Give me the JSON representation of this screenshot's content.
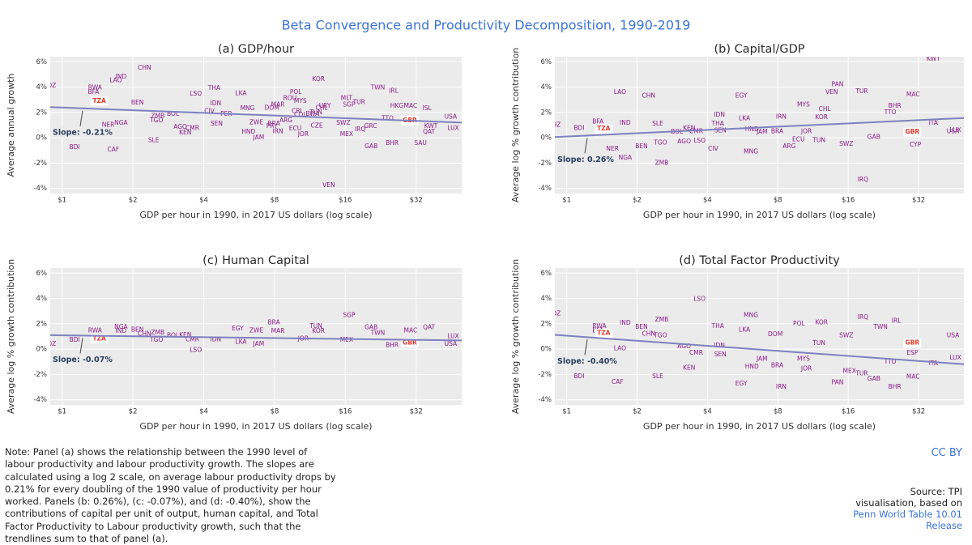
{
  "title": "Beta Convergence and Productivity Decomposition, 1990-2019",
  "chart_data": [
    {
      "type": "scatter",
      "title": "(a) GDP/hour",
      "xlabel": "GDP per hour in 1990, in 2017 US dollars (log scale)",
      "ylabel": "Average annual growth",
      "labels": [
        "MOZ",
        "BDI",
        "RWA",
        "BFA",
        "TZA",
        "LAO",
        "IND",
        "CHN",
        "NER",
        "NGA",
        "CAF",
        "BEN",
        "ZMB",
        "TGO",
        "BOL",
        "SLE",
        "AGO",
        "CMR",
        "KEN",
        "THA",
        "LSO",
        "IDN",
        "CIV",
        "SEN",
        "MNG",
        "LKA",
        "PER",
        "HND",
        "JAM",
        "ZWE",
        "PRY",
        "BRA",
        "MAR",
        "DOM",
        "IRN",
        "ECU",
        "JOR",
        "POL",
        "ROU",
        "CRI",
        "COL",
        "ARG",
        "KOR",
        "TUN",
        "BWA",
        "URY",
        "CHL",
        "MYS",
        "CZE",
        "MLT",
        "SGP",
        "TUR",
        "SWZ",
        "GRC",
        "MEX",
        "BHR",
        "GAB",
        "TWN",
        "IRL",
        "HKG",
        "MAC",
        "ISL",
        "TTO",
        "GBR",
        "USA",
        "SAU",
        "QAT",
        "LUX",
        "VEN",
        "KWT",
        "IRQ"
      ],
      "x": [
        0.88,
        1.13,
        1.38,
        1.36,
        1.44,
        1.69,
        1.78,
        2.24,
        1.57,
        1.78,
        1.65,
        2.09,
        2.55,
        2.52,
        2.96,
        2.45,
        3.18,
        3.58,
        3.34,
        4.43,
        3.7,
        4.5,
        4.23,
        4.54,
        6.14,
        5.76,
        4.99,
        6.2,
        6.85,
        6.7,
        7.8,
        7.95,
        8.27,
        7.8,
        8.27,
        9.8,
        10.6,
        9.85,
        9.3,
        9.95,
        10.3,
        8.95,
        12.3,
        12.0,
        11.6,
        13.1,
        12.7,
        10.3,
        12.1,
        16.2,
        16.6,
        18.3,
        15.7,
        20.5,
        16.2,
        25.3,
        20.6,
        22.0,
        25.7,
        26.5,
        30.3,
        35.6,
        24.2,
        30.1,
        44.9,
        33.4,
        36.3,
        46,
        13.6,
        37,
        18.5
      ],
      "values": [
        4.1,
        -0.77,
        3.95,
        3.6,
        2.9,
        4.5,
        4.8,
        5.5,
        1.0,
        1.15,
        -0.95,
        2.75,
        1.7,
        1.35,
        1.85,
        -0.2,
        0.85,
        0.75,
        0.4,
        3.9,
        3.45,
        2.7,
        2.1,
        1.1,
        2.3,
        3.5,
        1.85,
        0.45,
        0.0,
        1.2,
        0.9,
        1.1,
        2.6,
        2.35,
        0.5,
        0.7,
        0.25,
        3.6,
        3.1,
        2.1,
        1.8,
        1.35,
        4.6,
        2.0,
        1.85,
        2.5,
        2.35,
        2.9,
        0.95,
        3.1,
        2.6,
        2.8,
        1.15,
        0.9,
        0.25,
        -0.45,
        -0.7,
        3.95,
        3.7,
        2.5,
        2.5,
        2.3,
        1.5,
        1.35,
        1.65,
        -0.45,
        0.45,
        0.75,
        -3.75,
        0.9,
        0.65
      ],
      "highlight": [
        "TZA",
        "GBR"
      ],
      "color": "#8b1a89",
      "highlight_color": "#e8392c",
      "trendline": {
        "x": [
          0.89,
          50
        ],
        "values": [
          2.42,
          1.2
        ],
        "color": "#8080c0"
      },
      "slope_label": "Slope: -0.21%",
      "xscale": "log",
      "xlim": [
        0.89,
        50
      ],
      "xticks": [
        {
          "value": 1,
          "label": "$1"
        },
        {
          "value": 2,
          "label": "$2"
        },
        {
          "value": 4,
          "label": "$4"
        },
        {
          "value": 8,
          "label": "$8"
        },
        {
          "value": 16,
          "label": "$16"
        },
        {
          "value": 32,
          "label": "$32"
        }
      ],
      "ylim": [
        -4.4,
        6.4
      ],
      "yticks": [
        {
          "value": -4,
          "label": "-4%"
        },
        {
          "value": -2,
          "label": "-2%"
        },
        {
          "value": 0,
          "label": "0%"
        },
        {
          "value": 2,
          "label": "2%"
        },
        {
          "value": 4,
          "label": "4%"
        },
        {
          "value": 6,
          "label": "6%"
        }
      ],
      "grid": true
    },
    {
      "type": "scatter",
      "title": "(b) Capital/GDP",
      "xlabel": "GDP per hour in 1990, in 2017 US dollars (log scale)",
      "ylabel": "Average log % growth contribution",
      "labels": [
        "MOZ",
        "BDI",
        "BFA",
        "TZA",
        "LAO",
        "CHN",
        "IND",
        "NER",
        "NGA",
        "ZMB",
        "BEN",
        "TGO",
        "SLE",
        "AGO",
        "CIV",
        "LSO",
        "KEN",
        "BOL",
        "CMR",
        "EGY",
        "IDN",
        "THA",
        "LKA",
        "SEN",
        "MNG",
        "HND",
        "JAM",
        "BRA",
        "IRN",
        "ARG",
        "ECU",
        "JOR",
        "MYS",
        "CHL",
        "KOR",
        "TUN",
        "PAN",
        "SWZ",
        "TUR",
        "VEN",
        "GAB",
        "IRQ",
        "BHR",
        "TTO",
        "MAC",
        "KWT",
        "ITA",
        "GBR",
        "CYP",
        "USA",
        "LUX"
      ],
      "x": [
        0.88,
        1.13,
        1.36,
        1.44,
        1.69,
        2.24,
        1.78,
        1.57,
        1.78,
        2.55,
        2.09,
        2.52,
        2.45,
        3.18,
        4.23,
        3.7,
        3.34,
        2.96,
        3.58,
        5.58,
        4.5,
        4.43,
        5.76,
        4.54,
        6.14,
        6.2,
        6.85,
        7.95,
        8.27,
        8.95,
        9.8,
        10.6,
        10.3,
        12.7,
        12.3,
        12.0,
        14.4,
        15.7,
        18.3,
        13.6,
        20.6,
        18.5,
        25.3,
        24.2,
        30.3,
        37,
        37,
        30.1,
        31,
        44.9,
        46
      ],
      "values": [
        1.0,
        0.75,
        1.25,
        0.7,
        3.6,
        3.3,
        1.15,
        -0.9,
        -1.6,
        -2.0,
        -0.7,
        -0.4,
        1.1,
        -0.3,
        -0.9,
        -0.25,
        0.75,
        0.45,
        0.5,
        3.3,
        1.8,
        1.1,
        1.5,
        0.55,
        -1.1,
        0.65,
        0.45,
        0.5,
        1.65,
        -0.7,
        -0.15,
        0.5,
        2.6,
        2.25,
        1.6,
        -0.2,
        4.2,
        -0.5,
        3.65,
        3.6,
        0.05,
        -3.3,
        2.5,
        2.0,
        3.4,
        6.2,
        1.15,
        0.45,
        -0.55,
        0.5,
        0.6
      ],
      "highlight": [
        "TZA",
        "GBR"
      ],
      "color": "#8b1a89",
      "highlight_color": "#e8392c",
      "trendline": {
        "x": [
          0.89,
          50
        ],
        "values": [
          0.06,
          1.56
        ],
        "color": "#8080c0"
      },
      "slope_label": "Slope: 0.26%",
      "xscale": "log",
      "xlim": [
        0.89,
        50
      ],
      "xticks": [
        {
          "value": 1,
          "label": "$1"
        },
        {
          "value": 2,
          "label": "$2"
        },
        {
          "value": 4,
          "label": "$4"
        },
        {
          "value": 8,
          "label": "$8"
        },
        {
          "value": 16,
          "label": "$16"
        },
        {
          "value": 32,
          "label": "$32"
        }
      ],
      "ylim": [
        -4.4,
        6.4
      ],
      "yticks": [
        {
          "value": -4,
          "label": "-4%"
        },
        {
          "value": -2,
          "label": "-2%"
        },
        {
          "value": 0,
          "label": "0%"
        },
        {
          "value": 2,
          "label": "2%"
        },
        {
          "value": 4,
          "label": "4%"
        },
        {
          "value": 6,
          "label": "6%"
        }
      ],
      "grid": true
    },
    {
      "type": "scatter",
      "title": "(c) Human Capital",
      "xlabel": "GDP per hour in 1990, in 2017 US dollars (log scale)",
      "ylabel": "Average log % growth contribution",
      "labels": [
        "MOZ",
        "BDI",
        "RWA",
        "TZA",
        "NGA",
        "IND",
        "BEN",
        "ZMB",
        "TGO",
        "BOL",
        "KEN",
        "CMR",
        "LSO",
        "EGY",
        "CHN",
        "IDN",
        "LKA",
        "JAM",
        "ZWE",
        "MAR",
        "BRA",
        "TUN",
        "KOR",
        "SGP",
        "GAB",
        "TWN",
        "MAC",
        "QAT",
        "LUX",
        "GBR",
        "USA",
        "BHR",
        "MEX",
        "JOR"
      ],
      "x": [
        0.88,
        1.13,
        1.38,
        1.44,
        1.78,
        1.78,
        2.09,
        2.55,
        2.52,
        2.96,
        3.34,
        3.58,
        3.7,
        5.58,
        2.24,
        4.5,
        5.76,
        6.85,
        6.7,
        8.27,
        7.95,
        12.0,
        12.3,
        16.6,
        20.6,
        22.0,
        30.3,
        36.3,
        46,
        30.1,
        44.9,
        25.3,
        16.2,
        10.6
      ],
      "values": [
        0.4,
        0.7,
        1.45,
        0.8,
        1.75,
        1.4,
        1.5,
        1.3,
        0.7,
        1.05,
        1.1,
        0.75,
        -0.1,
        1.6,
        1.2,
        0.75,
        0.55,
        0.4,
        1.45,
        1.4,
        2.1,
        1.8,
        1.4,
        2.65,
        1.7,
        1.25,
        1.45,
        1.7,
        1.0,
        0.5,
        0.4,
        0.3,
        0.7,
        0.8
      ],
      "highlight": [
        "TZA",
        "GBR"
      ],
      "color": "#8b1a89",
      "highlight_color": "#e8392c",
      "trendline": {
        "x": [
          0.89,
          50
        ],
        "values": [
          1.1,
          0.69
        ],
        "color": "#8080c0"
      },
      "slope_label": "Slope: -0.07%",
      "xscale": "log",
      "xlim": [
        0.89,
        50
      ],
      "xticks": [
        {
          "value": 1,
          "label": "$1"
        },
        {
          "value": 2,
          "label": "$2"
        },
        {
          "value": 4,
          "label": "$4"
        },
        {
          "value": 8,
          "label": "$8"
        },
        {
          "value": 16,
          "label": "$16"
        },
        {
          "value": 32,
          "label": "$32"
        }
      ],
      "ylim": [
        -4.4,
        6.4
      ],
      "yticks": [
        {
          "value": -4,
          "label": "-4%"
        },
        {
          "value": -2,
          "label": "-2%"
        },
        {
          "value": 0,
          "label": "0%"
        },
        {
          "value": 2,
          "label": "2%"
        },
        {
          "value": 4,
          "label": "4%"
        },
        {
          "value": 6,
          "label": "6%"
        }
      ],
      "grid": true
    },
    {
      "type": "scatter",
      "title": "(d) Total Factor Productivity",
      "xlabel": "GDP per hour in 1990, in 2017 US dollars (log scale)",
      "ylabel": "Average log % growth contribution",
      "labels": [
        "MOZ",
        "BDI",
        "RWA",
        "BFA",
        "TZA",
        "LAO",
        "IND",
        "BEN",
        "ZMB",
        "CHN",
        "TGO",
        "CAF",
        "SLE",
        "AGO",
        "CMR",
        "KEN",
        "LSO",
        "THA",
        "LKA",
        "IDN",
        "SEN",
        "EGY",
        "MNG",
        "HND",
        "JAM",
        "BRA",
        "IRN",
        "DOM",
        "POL",
        "KOR",
        "TUN",
        "MYS",
        "JOR",
        "PAN",
        "MEX",
        "TUR",
        "GAB",
        "BHR",
        "MAC",
        "IRQ",
        "TWN",
        "IRL",
        "SWZ",
        "ITA",
        "ESP",
        "GBR",
        "USA",
        "LUX",
        "TTO"
      ],
      "x": [
        0.88,
        1.13,
        1.38,
        1.36,
        1.44,
        1.69,
        1.78,
        2.09,
        2.55,
        2.24,
        2.52,
        1.65,
        2.45,
        3.18,
        3.58,
        3.34,
        3.7,
        4.43,
        5.76,
        4.5,
        4.54,
        5.58,
        6.14,
        6.2,
        6.85,
        7.95,
        8.27,
        7.8,
        9.85,
        12.3,
        12.0,
        10.3,
        10.6,
        14.4,
        16.2,
        18.3,
        20.6,
        25.3,
        30.3,
        18.5,
        22.0,
        25.7,
        15.7,
        37,
        30.1,
        30.1,
        44.9,
        46,
        24.2
      ],
      "values": [
        2.8,
        -2.15,
        1.8,
        1.45,
        1.25,
        0.05,
        2.05,
        1.75,
        2.3,
        1.2,
        1.05,
        -2.6,
        -2.15,
        0.2,
        -0.3,
        -1.5,
        3.95,
        1.8,
        1.5,
        0.25,
        -0.45,
        -2.75,
        2.65,
        -1.4,
        -0.8,
        -1.3,
        -3.0,
        1.15,
        2.0,
        2.1,
        0.45,
        -0.8,
        -1.55,
        -2.65,
        -1.75,
        -1.95,
        -2.35,
        -3.0,
        -2.2,
        2.5,
        1.75,
        2.2,
        1.05,
        -1.15,
        -0.3,
        0.5,
        1.05,
        -0.7,
        -1.0
      ],
      "highlight": [
        "TZA",
        "GBR"
      ],
      "color": "#8b1a89",
      "highlight_color": "#e8392c",
      "trendline": {
        "x": [
          0.89,
          50
        ],
        "values": [
          1.13,
          -1.19
        ],
        "color": "#8080c0"
      },
      "slope_label": "Slope: -0.40%",
      "xscale": "log",
      "xlim": [
        0.89,
        50
      ],
      "xticks": [
        {
          "value": 1,
          "label": "$1"
        },
        {
          "value": 2,
          "label": "$2"
        },
        {
          "value": 4,
          "label": "$4"
        },
        {
          "value": 8,
          "label": "$8"
        },
        {
          "value": 16,
          "label": "$16"
        },
        {
          "value": 32,
          "label": "$32"
        }
      ],
      "ylim": [
        -4.4,
        6.4
      ],
      "yticks": [
        {
          "value": -4,
          "label": "-4%"
        },
        {
          "value": -2,
          "label": "-2%"
        },
        {
          "value": 0,
          "label": "0%"
        },
        {
          "value": 2,
          "label": "2%"
        },
        {
          "value": 4,
          "label": "4%"
        },
        {
          "value": 6,
          "label": "6%"
        }
      ],
      "grid": true
    }
  ],
  "footer": {
    "note": "Note: Panel (a) shows the relationship between the 1990 level of labour productivity and labour productivity growth. The slopes are calculated using a log 2 scale, on average labour productivity drops by 0.21% for every doubling of the 1990 value of productivity per hour worked. Panels (b: 0.26%), (c: -0.07%), and (d: -0.40%), show the contributions of capital per unit of output, human capital, and Total Factor Productivity to Labour productivity growth, such that the trendlines sum to that of panel (a).",
    "license": "CC BY",
    "source": "Source: TPI visualisation, based on",
    "source_link": "Penn World Table 10.01 Release"
  }
}
